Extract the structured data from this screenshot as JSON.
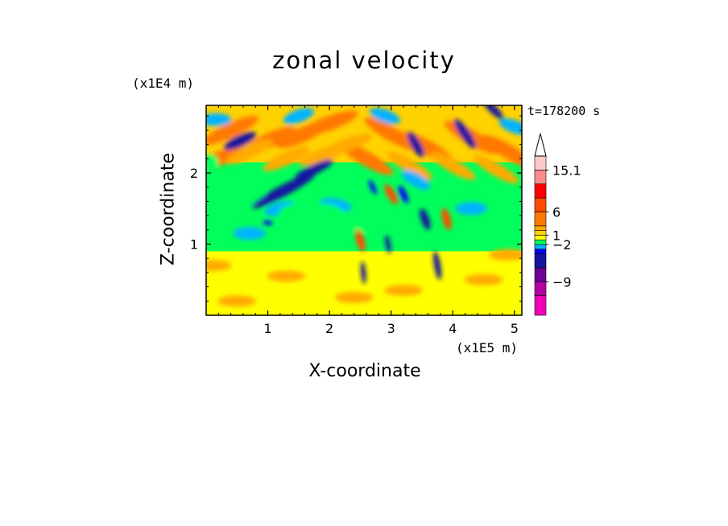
{
  "chart_data": {
    "type": "heatmap",
    "title": "zonal velocity",
    "xlabel": "X-coordinate",
    "ylabel": "Z-coordinate",
    "x_unit": "(x1E5 m)",
    "y_unit": "(x1E4 m)",
    "time_label": "t=178200 s",
    "xlim": [
      0,
      5.12
    ],
    "ylim": [
      0,
      2.95
    ],
    "x_ticks": [
      1,
      2,
      3,
      4,
      5
    ],
    "y_ticks": [
      1,
      2
    ],
    "colorbar": {
      "labels": [
        {
          "value": 15.1,
          "text": "15.1"
        },
        {
          "value": 6,
          "text": "6"
        },
        {
          "value": 1,
          "text": "1"
        },
        {
          "value": -2,
          "text": "−2"
        },
        {
          "value": -9,
          "text": "−9"
        }
      ],
      "colors": [
        "#f000b4",
        "#b400a0",
        "#6e0096",
        "#1414a0",
        "#0000ff",
        "#00b4ff",
        "#00ff5a",
        "#ffff00",
        "#ffd200",
        "#ffaa00",
        "#ff7800",
        "#ff4b00",
        "#ff0000",
        "#ff8c8c",
        "#ffc8c8"
      ]
    },
    "field_summary": {
      "background_near_surface": "yellow / light green (about 0 to 1)",
      "upper_layer": "orange bands (about 3 to 6)",
      "tilted_wave_bands": "dark blue (about -9 to -2)",
      "mountain_region_x": [
        2.3,
        4.0
      ]
    }
  }
}
